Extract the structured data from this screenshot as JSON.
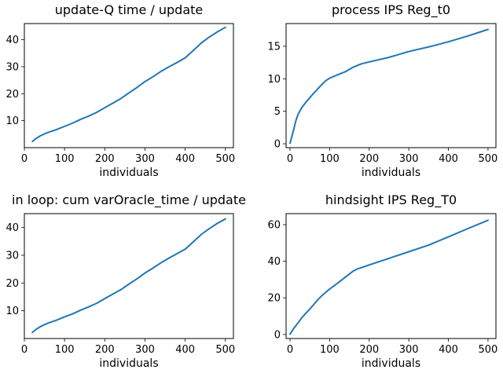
{
  "chart_data": [
    {
      "type": "line",
      "title": "update-Q time / update",
      "xlabel": "individuals",
      "ylabel": "",
      "xlim": [
        0,
        520
      ],
      "ylim": [
        0,
        46
      ],
      "xticks": [
        0,
        100,
        200,
        300,
        400,
        500
      ],
      "yticks": [
        10,
        20,
        30,
        40
      ],
      "grid": false,
      "series": [
        {
          "name": "",
          "color": "#1f77b4",
          "x": [
            20,
            30,
            40,
            50,
            60,
            80,
            100,
            120,
            140,
            160,
            180,
            200,
            220,
            240,
            260,
            280,
            300,
            320,
            340,
            360,
            380,
            400,
            420,
            440,
            460,
            480,
            500
          ],
          "y": [
            2.3,
            3.5,
            4.4,
            5.1,
            5.7,
            6.7,
            7.9,
            9.1,
            10.5,
            11.7,
            13.1,
            14.8,
            16.5,
            18.2,
            20.3,
            22.3,
            24.5,
            26.3,
            28.3,
            30.0,
            31.6,
            33.3,
            36.0,
            38.8,
            41.0,
            42.9,
            44.6
          ]
        }
      ]
    },
    {
      "type": "line",
      "title": "process IPS Reg_t0",
      "xlabel": "individuals",
      "ylabel": "",
      "xlim": [
        -10,
        520
      ],
      "ylim": [
        -0.6,
        18.5
      ],
      "xticks": [
        0,
        100,
        200,
        300,
        400,
        500
      ],
      "yticks": [
        0,
        5,
        10,
        15
      ],
      "grid": false,
      "series": [
        {
          "name": "",
          "color": "#1f77b4",
          "x": [
            0,
            5,
            10,
            15,
            20,
            30,
            40,
            50,
            60,
            80,
            90,
            100,
            120,
            140,
            160,
            180,
            200,
            250,
            300,
            350,
            400,
            450,
            480,
            500
          ],
          "y": [
            0.1,
            1.2,
            2.4,
            3.6,
            4.5,
            5.6,
            6.4,
            7.1,
            7.8,
            9.1,
            9.7,
            10.1,
            10.6,
            11.1,
            11.8,
            12.3,
            12.6,
            13.3,
            14.2,
            14.9,
            15.7,
            16.6,
            17.2,
            17.6
          ]
        }
      ]
    },
    {
      "type": "line",
      "title": "in loop: cum varOracle_time / update",
      "xlabel": "individuals",
      "ylabel": "",
      "xlim": [
        0,
        520
      ],
      "ylim": [
        0,
        45
      ],
      "xticks": [
        0,
        100,
        200,
        300,
        400,
        500
      ],
      "yticks": [
        10,
        20,
        30,
        40
      ],
      "grid": false,
      "series": [
        {
          "name": "",
          "color": "#1f77b4",
          "x": [
            20,
            30,
            40,
            50,
            60,
            80,
            100,
            120,
            140,
            160,
            180,
            200,
            220,
            240,
            260,
            280,
            300,
            320,
            340,
            360,
            380,
            400,
            420,
            440,
            460,
            480,
            500
          ],
          "y": [
            2.2,
            3.4,
            4.3,
            5.0,
            5.6,
            6.6,
            7.8,
            8.9,
            10.2,
            11.4,
            12.7,
            14.4,
            16.0,
            17.6,
            19.6,
            21.5,
            23.6,
            25.4,
            27.3,
            29.0,
            30.6,
            32.2,
            34.8,
            37.5,
            39.6,
            41.5,
            43.1
          ]
        }
      ]
    },
    {
      "type": "line",
      "title": "hindsight IPS Reg_T0",
      "xlabel": "individuals",
      "ylabel": "",
      "xlim": [
        -10,
        520
      ],
      "ylim": [
        -2.2,
        66
      ],
      "xticks": [
        0,
        100,
        200,
        300,
        400,
        500
      ],
      "yticks": [
        0,
        20,
        40,
        60
      ],
      "grid": false,
      "series": [
        {
          "name": "",
          "color": "#1f77b4",
          "x": [
            0,
            10,
            20,
            30,
            40,
            50,
            60,
            70,
            80,
            90,
            100,
            120,
            140,
            160,
            170,
            180,
            200,
            250,
            300,
            350,
            400,
            450,
            500
          ],
          "y": [
            0.2,
            3.5,
            6.3,
            9.2,
            11.6,
            13.9,
            16.4,
            19.0,
            21.1,
            23.0,
            24.8,
            28.0,
            31.4,
            34.7,
            35.8,
            36.5,
            38.0,
            41.6,
            45.2,
            48.8,
            53.3,
            57.9,
            62.4
          ]
        }
      ]
    }
  ]
}
